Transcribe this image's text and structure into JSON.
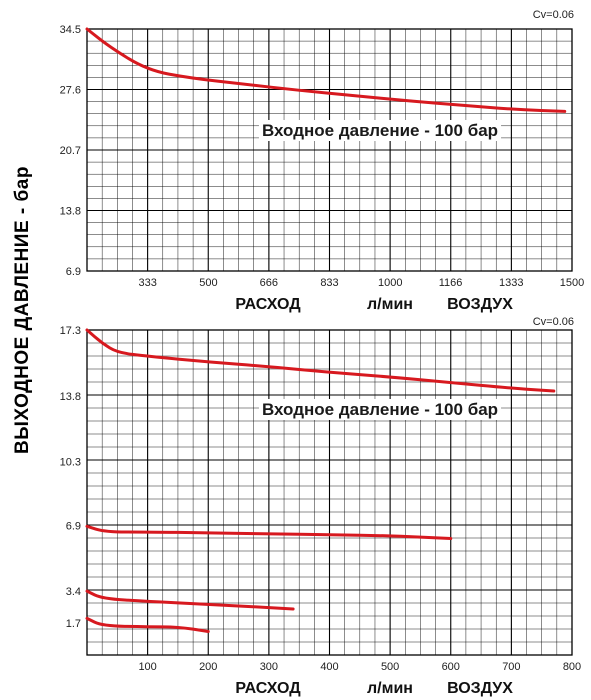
{
  "shared_ylabel": "ВЫХОДНОЕ ДАВЛЕНИЕ - бар",
  "colors": {
    "curve": "#d7191f",
    "grid": "#000000",
    "background": "#ffffff"
  },
  "chart_data": [
    {
      "type": "line",
      "id": "top",
      "cv_note": "Cv=0.06",
      "annotation": "Входное давление - 100 бар",
      "xlabel": "РАСХОД",
      "xunit": "л/мин",
      "xmedium": "ВОЗДУХ",
      "xlim": [
        166,
        1500
      ],
      "ylim": [
        6.9,
        34.5
      ],
      "xticks": [
        333,
        500,
        666,
        833,
        1000,
        1166,
        1333,
        1500
      ],
      "xtick_labels": [
        "333",
        "500",
        "666",
        "833",
        "1000",
        "1166",
        "1333",
        "1500"
      ],
      "yticks": [
        34.5,
        27.6,
        20.7,
        13.8,
        6.9
      ],
      "ytick_labels": [
        "34.5",
        "27.6",
        "20.7",
        "13.8",
        "6.9"
      ],
      "grid": {
        "x_major": 8,
        "x_minor_per_major": 4,
        "y_major": 4,
        "y_minor_per_major": 5
      },
      "series": [
        {
          "x": [
            166,
            230,
            333,
            450,
            600,
            750,
            900,
            1050,
            1200,
            1350,
            1480
          ],
          "y": [
            34.5,
            32.4,
            29.8,
            28.9,
            28.2,
            27.5,
            26.9,
            26.3,
            25.8,
            25.3,
            25.1
          ]
        }
      ]
    },
    {
      "type": "line",
      "id": "bottom",
      "cv_note": "Cv=0.06",
      "annotation": "Входное давление - 100 бар",
      "xlabel": "РАСХОД",
      "xunit": "л/мин",
      "xmedium": "ВОЗДУХ",
      "xlim": [
        0,
        800
      ],
      "ylim": [
        0,
        17.3
      ],
      "xticks": [
        100,
        200,
        300,
        400,
        500,
        600,
        700,
        800
      ],
      "xtick_labels": [
        "100",
        "200",
        "300",
        "400",
        "500",
        "600",
        "700",
        "800"
      ],
      "yticks": [
        17.3,
        13.8,
        10.3,
        6.9,
        3.4,
        1.7
      ],
      "ytick_labels": [
        "17.3",
        "13.8",
        "10.3",
        "6.9",
        "3.4",
        "1.7"
      ],
      "grid": {
        "x_major": 8,
        "x_minor_per_major": 4,
        "y_major": 5,
        "y_minor_per_major": 5
      },
      "series": [
        {
          "x": [
            0,
            25,
            50,
            100,
            200,
            300,
            400,
            500,
            600,
            700,
            770
          ],
          "y": [
            17.3,
            16.6,
            16.1,
            15.9,
            15.6,
            15.35,
            15.05,
            14.8,
            14.5,
            14.2,
            14.05
          ]
        },
        {
          "x": [
            0,
            30,
            100,
            200,
            300,
            400,
            500,
            600
          ],
          "y": [
            6.85,
            6.55,
            6.55,
            6.5,
            6.45,
            6.4,
            6.35,
            6.2
          ]
        },
        {
          "x": [
            0,
            25,
            100,
            200,
            340
          ],
          "y": [
            3.4,
            3.0,
            2.85,
            2.7,
            2.45
          ]
        },
        {
          "x": [
            0,
            25,
            100,
            150,
            200
          ],
          "y": [
            1.95,
            1.55,
            1.5,
            1.5,
            1.25
          ]
        }
      ]
    }
  ]
}
